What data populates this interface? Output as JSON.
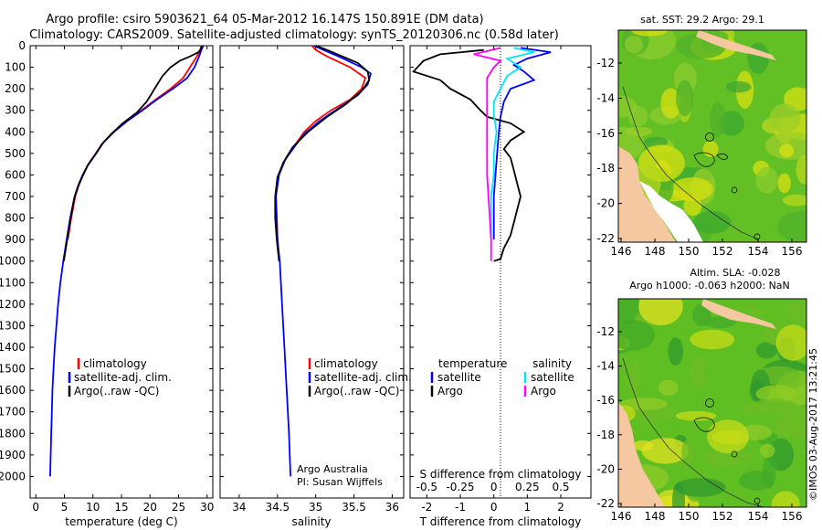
{
  "title": {
    "line1": "Argo profile: csiro 5903621_64 05-Mar-2012 16.147S 150.891E (DM data)",
    "line2": "Climatology: CARS2009. Satellite-adjusted climatology: synTS_20120306.nc (0.58d later)"
  },
  "colors": {
    "climatology": "#ff0000",
    "satellite": "#0000ff",
    "argo": "#000000",
    "argo_salinity": "#ff00ff",
    "satellite_salinity": "#00e5ff",
    "land": "#f6c8a2"
  },
  "depth_axis": {
    "ticks": [
      "0",
      "100",
      "200",
      "300",
      "400",
      "500",
      "600",
      "700",
      "800",
      "900",
      "1000",
      "1100",
      "1200",
      "1300",
      "1400",
      "1500",
      "1600",
      "1700",
      "1800",
      "1900",
      "2000"
    ],
    "range": [
      0,
      2100
    ]
  },
  "legend": {
    "climatology": "climatology",
    "satellite_adj": "satellite-adj. clim.",
    "argo_raw": "Argo(..raw -QC)",
    "temperature_head": "temperature",
    "salinity_head": "salinity",
    "satellite": "satellite",
    "argo": "Argo"
  },
  "credit": {
    "org": "Argo Australia",
    "pi": "PI: Susan Wijffels"
  },
  "map_top": {
    "title": "sat. SST: 29.2  Argo: 29.1",
    "xticks": [
      "146",
      "148",
      "150",
      "152",
      "154",
      "156"
    ],
    "yticks": [
      "-12",
      "-14",
      "-16",
      "-18",
      "-20",
      "-22"
    ]
  },
  "map_bottom": {
    "title1": "Altim. SLA: -0.028",
    "title2": "Argo h1000: -0.063  h2000: NaN",
    "xticks": [
      "146",
      "148",
      "150",
      "152",
      "154",
      "156"
    ],
    "yticks": [
      "-12",
      "-14",
      "-16",
      "-18",
      "-20",
      "-22"
    ]
  },
  "stamp": "©IMOS 03-Aug-2017 13:21:45",
  "chart_data": [
    {
      "type": "line",
      "name": "temperature-profile",
      "xlabel": "temperature (deg C)",
      "ylabel": "depth",
      "xlim": [
        -1,
        31
      ],
      "ylim": [
        2100,
        0
      ],
      "xticks": [
        "0",
        "5",
        "10",
        "15",
        "20",
        "25",
        "30"
      ],
      "series": [
        {
          "name": "climatology",
          "color": "#ff0000",
          "points": [
            [
              29.0,
              0
            ],
            [
              28.8,
              20
            ],
            [
              28.2,
              50
            ],
            [
              27.0,
              100
            ],
            [
              25.8,
              150
            ],
            [
              23.6,
              200
            ],
            [
              21.0,
              250
            ],
            [
              18.5,
              300
            ],
            [
              15.8,
              350
            ],
            [
              13.6,
              400
            ],
            [
              11.8,
              450
            ],
            [
              10.6,
              500
            ],
            [
              9.2,
              550
            ],
            [
              8.3,
              600
            ],
            [
              7.5,
              650
            ],
            [
              6.9,
              700
            ],
            [
              6.2,
              800
            ],
            [
              5.6,
              900
            ]
          ]
        },
        {
          "name": "satellite-adj. clim.",
          "color": "#0000ff",
          "points": [
            [
              29.3,
              0
            ],
            [
              29.0,
              20
            ],
            [
              28.6,
              50
            ],
            [
              27.8,
              100
            ],
            [
              26.5,
              150
            ],
            [
              24.0,
              200
            ],
            [
              21.2,
              250
            ],
            [
              18.7,
              300
            ],
            [
              16.0,
              350
            ],
            [
              13.7,
              400
            ],
            [
              11.8,
              450
            ],
            [
              10.5,
              500
            ],
            [
              9.2,
              550
            ],
            [
              8.2,
              600
            ],
            [
              7.4,
              650
            ],
            [
              6.8,
              700
            ],
            [
              6.0,
              800
            ],
            [
              5.4,
              900
            ],
            [
              4.8,
              1000
            ],
            [
              4.3,
              1100
            ],
            [
              3.9,
              1200
            ],
            [
              3.6,
              1300
            ],
            [
              3.3,
              1400
            ],
            [
              3.1,
              1500
            ],
            [
              2.9,
              1600
            ],
            [
              2.8,
              1700
            ],
            [
              2.7,
              1800
            ],
            [
              2.6,
              1900
            ],
            [
              2.5,
              2000
            ]
          ]
        },
        {
          "name": "Argo(..raw -QC)",
          "color": "#000000",
          "points": [
            [
              29.1,
              0
            ],
            [
              28.9,
              15
            ],
            [
              28.5,
              30
            ],
            [
              27.0,
              50
            ],
            [
              25.2,
              70
            ],
            [
              23.6,
              100
            ],
            [
              22.2,
              140
            ],
            [
              20.8,
              200
            ],
            [
              19.4,
              260
            ],
            [
              17.7,
              310
            ],
            [
              15.2,
              360
            ],
            [
              13.2,
              410
            ],
            [
              11.5,
              460
            ],
            [
              10.3,
              510
            ],
            [
              9.0,
              560
            ],
            [
              8.1,
              610
            ],
            [
              7.3,
              660
            ],
            [
              6.7,
              710
            ],
            [
              6.1,
              800
            ],
            [
              5.5,
              900
            ],
            [
              4.9,
              1000
            ]
          ]
        }
      ]
    },
    {
      "type": "line",
      "name": "salinity-profile",
      "xlabel": "salinity",
      "ylabel": "depth",
      "xlim": [
        33.75,
        36.15
      ],
      "ylim": [
        2100,
        0
      ],
      "xticks": [
        "34",
        "34.5",
        "35",
        "35.5",
        "36"
      ],
      "series": [
        {
          "name": "climatology",
          "color": "#ff0000",
          "points": [
            [
              34.95,
              0
            ],
            [
              35.0,
              20
            ],
            [
              35.15,
              50
            ],
            [
              35.45,
              100
            ],
            [
              35.65,
              150
            ],
            [
              35.6,
              200
            ],
            [
              35.45,
              250
            ],
            [
              35.2,
              300
            ],
            [
              35.0,
              350
            ],
            [
              34.85,
              400
            ],
            [
              34.75,
              450
            ],
            [
              34.65,
              500
            ],
            [
              34.57,
              550
            ],
            [
              34.52,
              600
            ],
            [
              34.49,
              650
            ],
            [
              34.48,
              700
            ],
            [
              34.49,
              800
            ],
            [
              34.5,
              900
            ]
          ]
        },
        {
          "name": "satellite-adj. clim.",
          "color": "#0000ff",
          "points": [
            [
              34.98,
              0
            ],
            [
              35.1,
              20
            ],
            [
              35.3,
              50
            ],
            [
              35.6,
              100
            ],
            [
              35.72,
              130
            ],
            [
              35.68,
              180
            ],
            [
              35.55,
              230
            ],
            [
              35.3,
              290
            ],
            [
              35.05,
              350
            ],
            [
              34.85,
              410
            ],
            [
              34.72,
              470
            ],
            [
              34.6,
              530
            ],
            [
              34.52,
              600
            ],
            [
              34.48,
              700
            ],
            [
              34.49,
              800
            ],
            [
              34.5,
              900
            ],
            [
              34.53,
              1000
            ],
            [
              34.56,
              1200
            ],
            [
              34.59,
              1400
            ],
            [
              34.62,
              1600
            ],
            [
              34.65,
              1800
            ],
            [
              34.67,
              2000
            ]
          ]
        },
        {
          "name": "Argo(..raw -QC)",
          "color": "#000000",
          "points": [
            [
              35.0,
              0
            ],
            [
              35.15,
              20
            ],
            [
              35.35,
              50
            ],
            [
              35.55,
              80
            ],
            [
              35.68,
              120
            ],
            [
              35.7,
              160
            ],
            [
              35.6,
              210
            ],
            [
              35.4,
              270
            ],
            [
              35.15,
              330
            ],
            [
              34.9,
              400
            ],
            [
              34.7,
              470
            ],
            [
              34.58,
              540
            ],
            [
              34.5,
              610
            ],
            [
              34.47,
              700
            ],
            [
              34.47,
              800
            ],
            [
              34.49,
              900
            ],
            [
              34.52,
              1000
            ]
          ]
        }
      ]
    },
    {
      "type": "line",
      "name": "difference-from-climatology",
      "xlabel": "T difference from climatology",
      "x2label": "S difference from climatology",
      "xlim": [
        -2.5,
        2.9
      ],
      "ylim": [
        2100,
        0
      ],
      "xticks": [
        "-2",
        "-1",
        "0",
        "1",
        "2"
      ],
      "x2ticks": [
        "-0.5",
        "-0.25",
        "0",
        "0.25",
        "0.5"
      ],
      "series": [
        {
          "name": "T satellite",
          "color": "#0000ff",
          "points": [
            [
              0.8,
              10
            ],
            [
              1.7,
              30
            ],
            [
              1.0,
              60
            ],
            [
              0.6,
              90
            ],
            [
              0.9,
              120
            ],
            [
              1.2,
              160
            ],
            [
              0.5,
              200
            ],
            [
              0.3,
              260
            ],
            [
              0.2,
              330
            ],
            [
              0.15,
              400
            ],
            [
              0.1,
              500
            ],
            [
              0.05,
              600
            ],
            [
              0.0,
              700
            ],
            [
              0.0,
              800
            ],
            [
              0.0,
              900
            ]
          ]
        },
        {
          "name": "T Argo",
          "color": "#000000",
          "points": [
            [
              -0.3,
              20
            ],
            [
              -1.6,
              40
            ],
            [
              -2.1,
              70
            ],
            [
              -2.4,
              120
            ],
            [
              -1.6,
              160
            ],
            [
              -1.3,
              200
            ],
            [
              -0.7,
              250
            ],
            [
              -0.4,
              300
            ],
            [
              -0.2,
              330
            ],
            [
              0.5,
              360
            ],
            [
              0.9,
              400
            ],
            [
              0.5,
              440
            ],
            [
              0.3,
              480
            ],
            [
              0.5,
              520
            ],
            [
              0.6,
              580
            ],
            [
              0.7,
              640
            ],
            [
              0.8,
              700
            ],
            [
              0.7,
              760
            ],
            [
              0.6,
              820
            ],
            [
              0.5,
              880
            ],
            [
              0.3,
              940
            ],
            [
              0.2,
              990
            ],
            [
              0.0,
              1000
            ]
          ]
        },
        {
          "name": "S satellite",
          "color": "#00e5ff",
          "points": [
            [
              0.15,
              10
            ],
            [
              0.3,
              30
            ],
            [
              0.1,
              60
            ],
            [
              0.2,
              100
            ],
            [
              0.1,
              140
            ],
            [
              0.05,
              200
            ],
            [
              0.0,
              260
            ],
            [
              0.0,
              320
            ],
            [
              0.02,
              400
            ],
            [
              0.0,
              500
            ],
            [
              0.0,
              600
            ],
            [
              -0.02,
              700
            ],
            [
              -0.02,
              800
            ],
            [
              -0.02,
              900
            ]
          ]
        },
        {
          "name": "S Argo",
          "color": "#ff00ff",
          "points": [
            [
              0.05,
              10
            ],
            [
              -0.15,
              40
            ],
            [
              0.05,
              70
            ],
            [
              0.0,
              100
            ],
            [
              -0.05,
              150
            ],
            [
              -0.05,
              200
            ],
            [
              -0.05,
              300
            ],
            [
              -0.05,
              400
            ],
            [
              -0.05,
              500
            ],
            [
              -0.05,
              600
            ],
            [
              -0.04,
              700
            ],
            [
              -0.03,
              800
            ],
            [
              -0.02,
              900
            ],
            [
              -0.02,
              1000
            ]
          ]
        }
      ]
    }
  ]
}
